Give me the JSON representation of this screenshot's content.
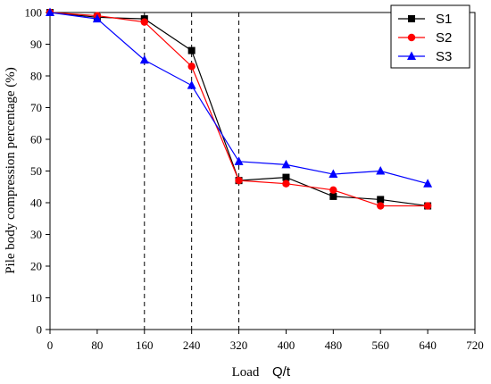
{
  "chart_data": {
    "type": "line",
    "xlabel_prefix": "Load",
    "xlabel_unit": "Q/t",
    "ylabel": "Pile body compression percentage (%)",
    "xlim": [
      0,
      720
    ],
    "ylim": [
      0,
      100
    ],
    "x_ticks": [
      0,
      80,
      160,
      240,
      320,
      400,
      480,
      560,
      640,
      720
    ],
    "y_ticks": [
      0,
      10,
      20,
      30,
      40,
      50,
      60,
      70,
      80,
      90,
      100
    ],
    "grid": false,
    "legend_position": "top-right",
    "reference_lines_x": [
      160,
      240,
      320
    ],
    "x": [
      0,
      80,
      160,
      240,
      320,
      400,
      480,
      560,
      640
    ],
    "series": [
      {
        "name": "S1",
        "color": "#000000",
        "marker": "square",
        "values": [
          100,
          98.5,
          98,
          88,
          47,
          48,
          42,
          41,
          39
        ]
      },
      {
        "name": "S2",
        "color": "#ff0000",
        "marker": "circle",
        "values": [
          100,
          99,
          97,
          83,
          47,
          46,
          44,
          39,
          39
        ]
      },
      {
        "name": "S3",
        "color": "#0000ff",
        "marker": "triangle",
        "values": [
          100,
          98,
          85,
          77,
          53,
          52,
          49,
          50,
          46
        ]
      }
    ]
  }
}
